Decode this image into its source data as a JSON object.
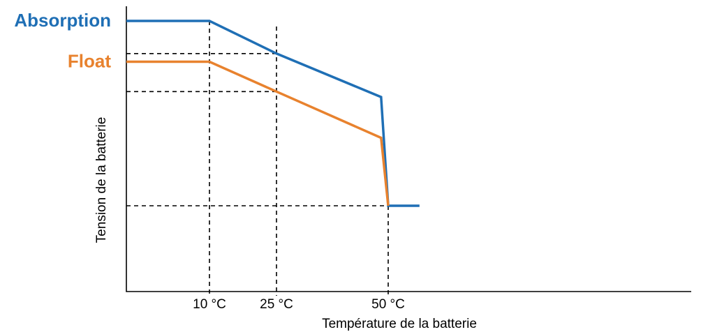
{
  "chart_data": {
    "type": "line",
    "title": "",
    "xlabel": "Température de la batterie",
    "ylabel": "Tension de la batterie",
    "xlim": [
      -6,
      66
    ],
    "ylim": [
      0,
      100
    ],
    "xticks": [
      {
        "value": 10,
        "label": "10 °C"
      },
      {
        "value": 25,
        "label": "25 °C"
      },
      {
        "value": 50,
        "label": "50 °C"
      }
    ],
    "guides": {
      "vertical": [
        10,
        25,
        50
      ],
      "horizontal": [
        87,
        73,
        31
      ]
    },
    "series": [
      {
        "name": "Absorption",
        "color": "#1f6fb5",
        "points": [
          [
            -6,
            99
          ],
          [
            10,
            99
          ],
          [
            25,
            87
          ],
          [
            48.4,
            71
          ],
          [
            50,
            31
          ],
          [
            57,
            31
          ]
        ]
      },
      {
        "name": "Float",
        "color": "#e8822e",
        "points": [
          [
            -6,
            84
          ],
          [
            10,
            84
          ],
          [
            25,
            73
          ],
          [
            48.4,
            56
          ],
          [
            50,
            31
          ]
        ]
      }
    ],
    "grid": false,
    "legend": "left, beside the y-axis at each series' plateau"
  }
}
